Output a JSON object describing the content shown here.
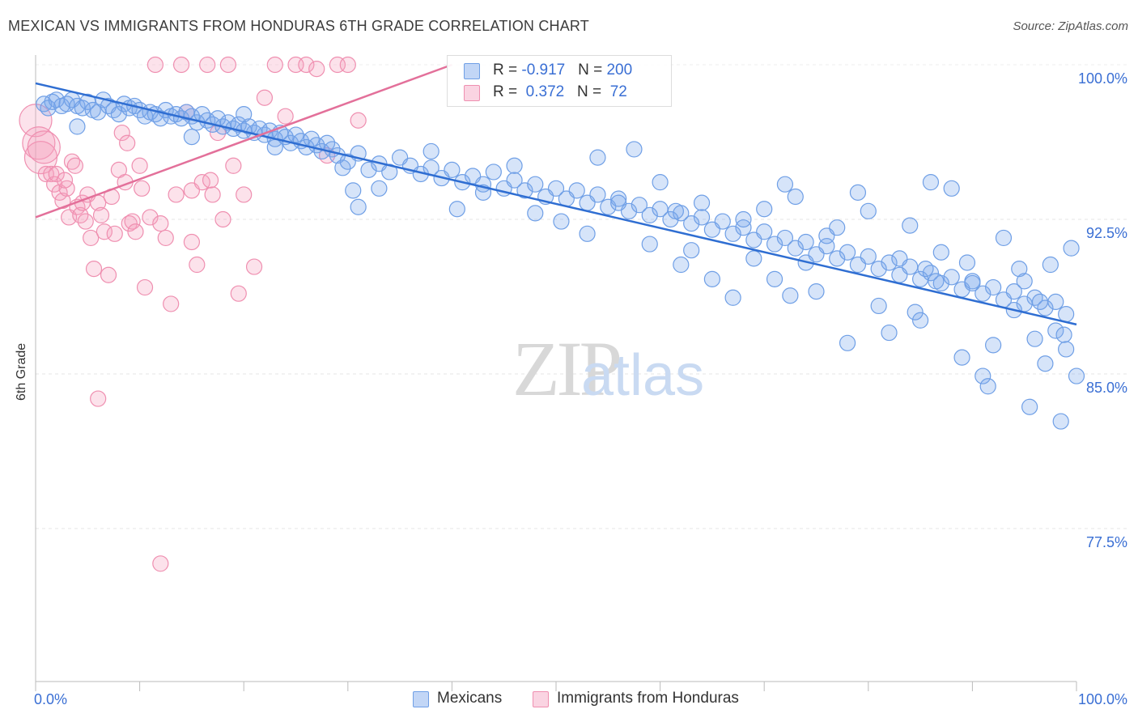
{
  "title": "MEXICAN VS IMMIGRANTS FROM HONDURAS 6TH GRADE CORRELATION CHART",
  "source": "Source: ZipAtlas.com",
  "watermark": {
    "zip": "ZIP",
    "atlas": "atlas"
  },
  "colors": {
    "blue": "#6f9fe6",
    "blue_fill": "rgba(120,165,235,0.30)",
    "blue_line": "#2f6ed2",
    "pink": "#ef8fb0",
    "pink_fill": "rgba(245,160,190,0.30)",
    "pink_line": "#e3709a",
    "axis_text": "#3a6fd4"
  },
  "legend": {
    "rows": [
      {
        "r_label": "R = ",
        "r_value": "-0.917",
        "n_label": "N = ",
        "n_value": "200"
      },
      {
        "r_label": "R = ",
        "r_value": " 0.372",
        "n_label": "N = ",
        "n_value": " 72"
      }
    ]
  },
  "bottom_legend": {
    "series1": "Mexicans",
    "series2": "Immigrants from Honduras"
  },
  "chart_data": {
    "type": "scatter",
    "title": "MEXICAN VS IMMIGRANTS FROM HONDURAS 6TH GRADE CORRELATION CHART",
    "xlabel": "",
    "ylabel": "6th Grade",
    "xlim": [
      0,
      100
    ],
    "ylim": [
      70,
      100.5
    ],
    "x_tick_labels": [
      "0.0%",
      "100.0%"
    ],
    "y_ticks": [
      77.5,
      85.0,
      92.5,
      100.0
    ],
    "y_tick_labels": [
      "77.5%",
      "85.0%",
      "92.5%",
      "100.0%"
    ],
    "grid": "horizontal dashed",
    "legend_position": "top-center",
    "series": [
      {
        "name": "Mexicans",
        "r": -0.917,
        "n": 200,
        "trend": {
          "x": [
            0,
            100
          ],
          "y": [
            99.1,
            87.4
          ]
        },
        "points": [
          [
            0.8,
            98.1
          ],
          [
            1.2,
            97.9
          ],
          [
            1.6,
            98.2
          ],
          [
            2.0,
            98.3
          ],
          [
            2.5,
            98.0
          ],
          [
            3.0,
            98.1
          ],
          [
            3.5,
            98.3
          ],
          [
            4.0,
            98.0
          ],
          [
            4.5,
            97.9
          ],
          [
            5.0,
            98.2
          ],
          [
            5.5,
            97.8
          ],
          [
            6.0,
            97.7
          ],
          [
            6.5,
            98.3
          ],
          [
            7.0,
            98.0
          ],
          [
            7.5,
            97.8
          ],
          [
            8.0,
            97.6
          ],
          [
            8.5,
            98.1
          ],
          [
            9.0,
            97.9
          ],
          [
            9.5,
            98.0
          ],
          [
            10.0,
            97.8
          ],
          [
            10.5,
            97.5
          ],
          [
            11.0,
            97.7
          ],
          [
            11.5,
            97.6
          ],
          [
            12.0,
            97.4
          ],
          [
            12.5,
            97.8
          ],
          [
            13.0,
            97.5
          ],
          [
            13.5,
            97.6
          ],
          [
            14.0,
            97.4
          ],
          [
            14.5,
            97.7
          ],
          [
            15.0,
            97.5
          ],
          [
            15.5,
            97.2
          ],
          [
            16.0,
            97.6
          ],
          [
            16.5,
            97.3
          ],
          [
            17.0,
            97.1
          ],
          [
            17.5,
            97.4
          ],
          [
            18.0,
            97.0
          ],
          [
            18.5,
            97.2
          ],
          [
            19.0,
            96.9
          ],
          [
            19.5,
            97.1
          ],
          [
            20.0,
            96.8
          ],
          [
            20.5,
            97.0
          ],
          [
            21.0,
            96.7
          ],
          [
            21.5,
            96.9
          ],
          [
            22.0,
            96.6
          ],
          [
            22.5,
            96.8
          ],
          [
            23.0,
            96.4
          ],
          [
            23.5,
            96.7
          ],
          [
            24.0,
            96.5
          ],
          [
            24.5,
            96.2
          ],
          [
            25.0,
            96.6
          ],
          [
            25.5,
            96.3
          ],
          [
            26.0,
            96.0
          ],
          [
            26.5,
            96.4
          ],
          [
            27.0,
            96.1
          ],
          [
            27.5,
            95.8
          ],
          [
            28.0,
            96.2
          ],
          [
            28.5,
            95.9
          ],
          [
            29.0,
            95.6
          ],
          [
            29.5,
            95.0
          ],
          [
            30.0,
            95.3
          ],
          [
            31.0,
            95.7
          ],
          [
            32.0,
            94.9
          ],
          [
            33.0,
            95.2
          ],
          [
            34.0,
            94.8
          ],
          [
            35.0,
            95.5
          ],
          [
            36.0,
            95.1
          ],
          [
            37.0,
            94.7
          ],
          [
            38.0,
            95.0
          ],
          [
            39.0,
            94.5
          ],
          [
            40.0,
            94.9
          ],
          [
            41.0,
            94.3
          ],
          [
            42.0,
            94.6
          ],
          [
            43.0,
            94.2
          ],
          [
            44.0,
            94.8
          ],
          [
            45.0,
            94.0
          ],
          [
            46.0,
            94.4
          ],
          [
            47.0,
            93.9
          ],
          [
            48.0,
            94.2
          ],
          [
            49.0,
            93.6
          ],
          [
            50.0,
            94.0
          ],
          [
            51.0,
            93.5
          ],
          [
            52.0,
            93.9
          ],
          [
            53.0,
            93.3
          ],
          [
            54.0,
            93.7
          ],
          [
            55.0,
            93.1
          ],
          [
            56.0,
            93.5
          ],
          [
            57.0,
            92.9
          ],
          [
            58.0,
            93.2
          ],
          [
            59.0,
            92.7
          ],
          [
            60.0,
            93.0
          ],
          [
            61.0,
            92.5
          ],
          [
            62.0,
            92.8
          ],
          [
            63.0,
            92.3
          ],
          [
            64.0,
            92.6
          ],
          [
            65.0,
            92.0
          ],
          [
            66.0,
            92.4
          ],
          [
            67.0,
            91.8
          ],
          [
            68.0,
            92.1
          ],
          [
            69.0,
            91.5
          ],
          [
            70.0,
            91.9
          ],
          [
            71.0,
            91.3
          ],
          [
            72.0,
            91.6
          ],
          [
            73.0,
            91.1
          ],
          [
            74.0,
            91.4
          ],
          [
            75.0,
            90.8
          ],
          [
            76.0,
            91.2
          ],
          [
            77.0,
            90.6
          ],
          [
            78.0,
            90.9
          ],
          [
            79.0,
            90.3
          ],
          [
            80.0,
            90.7
          ],
          [
            81.0,
            90.1
          ],
          [
            82.0,
            90.4
          ],
          [
            83.0,
            89.8
          ],
          [
            84.0,
            90.2
          ],
          [
            85.0,
            89.6
          ],
          [
            86.0,
            89.9
          ],
          [
            87.0,
            89.4
          ],
          [
            88.0,
            89.7
          ],
          [
            89.0,
            89.1
          ],
          [
            90.0,
            89.5
          ],
          [
            91.0,
            88.9
          ],
          [
            92.0,
            89.2
          ],
          [
            93.0,
            88.6
          ],
          [
            94.0,
            89.0
          ],
          [
            95.0,
            88.4
          ],
          [
            96.0,
            88.7
          ],
          [
            97.0,
            88.2
          ],
          [
            98.0,
            88.5
          ],
          [
            99.0,
            87.9
          ],
          [
            4.0,
            97.0
          ],
          [
            15.0,
            96.5
          ],
          [
            20.0,
            97.6
          ],
          [
            23.0,
            96.0
          ],
          [
            30.5,
            93.9
          ],
          [
            31.0,
            93.1
          ],
          [
            33.0,
            94.0
          ],
          [
            38.0,
            95.8
          ],
          [
            40.5,
            93.0
          ],
          [
            43.0,
            93.8
          ],
          [
            46.0,
            95.1
          ],
          [
            48.0,
            92.8
          ],
          [
            50.5,
            92.4
          ],
          [
            53.0,
            91.8
          ],
          [
            54.0,
            95.5
          ],
          [
            56.0,
            93.3
          ],
          [
            57.5,
            95.9
          ],
          [
            59.0,
            91.3
          ],
          [
            60.0,
            94.3
          ],
          [
            61.5,
            92.9
          ],
          [
            62.0,
            90.3
          ],
          [
            63.0,
            91.0
          ],
          [
            64.0,
            93.3
          ],
          [
            65.0,
            89.6
          ],
          [
            67.0,
            88.7
          ],
          [
            68.0,
            92.5
          ],
          [
            69.0,
            90.6
          ],
          [
            70.0,
            93.0
          ],
          [
            71.0,
            89.6
          ],
          [
            72.0,
            94.2
          ],
          [
            72.5,
            88.8
          ],
          [
            73.0,
            93.6
          ],
          [
            74.0,
            90.4
          ],
          [
            75.0,
            89.0
          ],
          [
            76.0,
            91.7
          ],
          [
            77.0,
            92.1
          ],
          [
            78.0,
            86.5
          ],
          [
            79.0,
            93.8
          ],
          [
            80.0,
            92.9
          ],
          [
            81.0,
            88.3
          ],
          [
            82.0,
            87.0
          ],
          [
            83.0,
            90.6
          ],
          [
            84.0,
            92.2
          ],
          [
            85.0,
            87.6
          ],
          [
            86.0,
            94.3
          ],
          [
            87.0,
            90.9
          ],
          [
            88.0,
            94.0
          ],
          [
            89.0,
            85.8
          ],
          [
            90.0,
            89.4
          ],
          [
            91.0,
            84.9
          ],
          [
            92.0,
            86.4
          ],
          [
            93.0,
            91.6
          ],
          [
            94.0,
            88.1
          ],
          [
            95.0,
            89.5
          ],
          [
            95.5,
            83.4
          ],
          [
            96.0,
            86.7
          ],
          [
            96.5,
            88.5
          ],
          [
            97.0,
            85.5
          ],
          [
            98.0,
            87.1
          ],
          [
            98.5,
            82.7
          ],
          [
            99.0,
            86.2
          ],
          [
            100.0,
            84.9
          ],
          [
            91.5,
            84.4
          ],
          [
            94.5,
            90.1
          ],
          [
            97.5,
            90.3
          ],
          [
            99.5,
            91.1
          ],
          [
            98.8,
            86.9
          ],
          [
            89.5,
            90.4
          ],
          [
            86.5,
            89.5
          ],
          [
            85.5,
            90.1
          ],
          [
            84.5,
            88.0
          ]
        ]
      },
      {
        "name": "Immigrants from Honduras",
        "r": 0.372,
        "n": 72,
        "trend": {
          "x": [
            0,
            40
          ],
          "y": [
            92.6,
            100.0
          ]
        },
        "points": [
          [
            0.0,
            97.3
          ],
          [
            0.3,
            96.2
          ],
          [
            0.5,
            95.5
          ],
          [
            0.8,
            96.0
          ],
          [
            1.0,
            94.7
          ],
          [
            1.5,
            94.7
          ],
          [
            1.8,
            94.2
          ],
          [
            2.0,
            94.7
          ],
          [
            2.3,
            93.8
          ],
          [
            2.6,
            93.4
          ],
          [
            3.0,
            94.0
          ],
          [
            3.2,
            92.6
          ],
          [
            3.5,
            95.3
          ],
          [
            3.8,
            95.1
          ],
          [
            4.0,
            93.1
          ],
          [
            4.3,
            92.7
          ],
          [
            4.5,
            93.3
          ],
          [
            4.8,
            92.4
          ],
          [
            5.0,
            93.7
          ],
          [
            5.3,
            91.6
          ],
          [
            5.6,
            90.1
          ],
          [
            6.0,
            93.3
          ],
          [
            6.3,
            92.7
          ],
          [
            6.6,
            91.9
          ],
          [
            7.0,
            89.8
          ],
          [
            7.3,
            93.6
          ],
          [
            7.6,
            91.8
          ],
          [
            8.0,
            94.9
          ],
          [
            8.3,
            96.7
          ],
          [
            8.6,
            94.3
          ],
          [
            9.0,
            92.3
          ],
          [
            9.3,
            92.4
          ],
          [
            9.6,
            91.9
          ],
          [
            10.0,
            95.1
          ],
          [
            10.5,
            89.2
          ],
          [
            11.0,
            92.6
          ],
          [
            11.5,
            100.0
          ],
          [
            12.0,
            92.3
          ],
          [
            12.5,
            91.6
          ],
          [
            13.0,
            88.4
          ],
          [
            13.5,
            93.7
          ],
          [
            14.0,
            100.0
          ],
          [
            14.5,
            97.7
          ],
          [
            15.0,
            93.9
          ],
          [
            15.5,
            90.3
          ],
          [
            16.0,
            94.3
          ],
          [
            16.5,
            100.0
          ],
          [
            17.0,
            93.7
          ],
          [
            17.5,
            96.7
          ],
          [
            18.0,
            92.5
          ],
          [
            18.5,
            100.0
          ],
          [
            19.0,
            95.1
          ],
          [
            19.5,
            88.9
          ],
          [
            20.0,
            93.7
          ],
          [
            21.0,
            90.2
          ],
          [
            22.0,
            98.4
          ],
          [
            23.0,
            100.0
          ],
          [
            24.0,
            97.5
          ],
          [
            25.0,
            100.0
          ],
          [
            26.0,
            100.0
          ],
          [
            27.0,
            99.8
          ],
          [
            28.0,
            95.6
          ],
          [
            29.0,
            100.0
          ],
          [
            30.0,
            100.0
          ],
          [
            31.0,
            97.3
          ],
          [
            6.0,
            83.8
          ],
          [
            12.0,
            75.8
          ],
          [
            15.0,
            91.4
          ],
          [
            10.2,
            94.0
          ],
          [
            16.8,
            94.4
          ],
          [
            8.8,
            96.2
          ],
          [
            2.8,
            94.4
          ]
        ]
      }
    ]
  }
}
